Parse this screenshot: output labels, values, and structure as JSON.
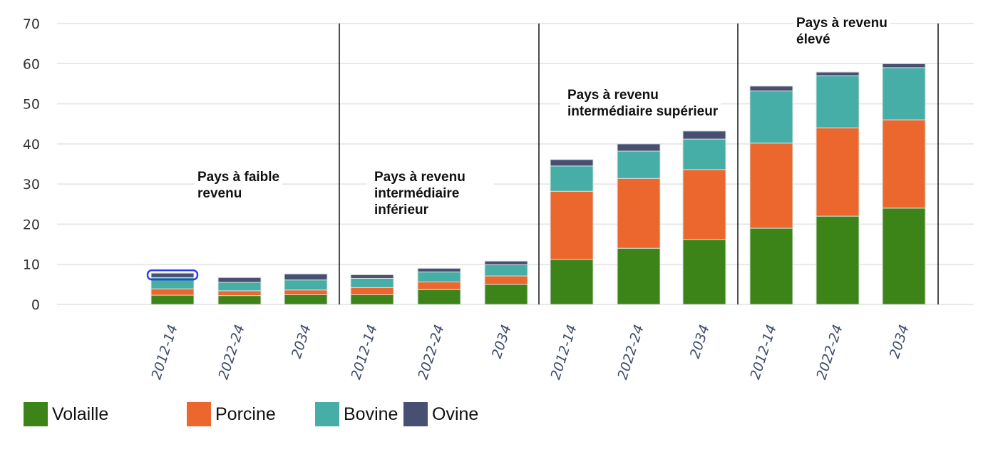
{
  "chart_data": {
    "type": "bar",
    "stacked": true,
    "ylim": [
      0,
      70
    ],
    "yticks": [
      0,
      10,
      20,
      30,
      40,
      50,
      60,
      70
    ],
    "grid": true,
    "legend_position": "bottom-left",
    "groups": [
      {
        "label": "Pays à faible revenu",
        "lines": [
          "Pays à faible",
          "revenu"
        ]
      },
      {
        "label": "Pays à revenu intermédiaire inférieur",
        "lines": [
          "Pays à revenu",
          "intermédiaire",
          "inférieur"
        ]
      },
      {
        "label": "Pays à revenu intermédiaire supérieur",
        "lines": [
          "Pays à revenu",
          "intermédiaire supérieur"
        ]
      },
      {
        "label": "Pays à revenu élevé",
        "lines": [
          "Pays à revenu",
          "élevé"
        ]
      }
    ],
    "categories": [
      "2012-14",
      "2022-24",
      "2034",
      "2012-14",
      "2022-24",
      "2034",
      "2012-14",
      "2022-24",
      "2034",
      "2012-14",
      "2022-24",
      "2034"
    ],
    "series": [
      {
        "name": "Volaille",
        "color": "#3d8418",
        "values": [
          2.3,
          2.2,
          2.4,
          2.4,
          3.7,
          5.0,
          11.2,
          14.0,
          16.2,
          19.0,
          22.0,
          24.0
        ]
      },
      {
        "name": "Porcine",
        "color": "#ec672e",
        "values": [
          1.6,
          1.2,
          1.2,
          1.8,
          1.9,
          2.1,
          17.0,
          17.4,
          17.4,
          21.2,
          22.0,
          22.0
        ]
      },
      {
        "name": "Bovine",
        "color": "#46aea6",
        "values": [
          2.8,
          2.1,
          2.5,
          2.3,
          2.5,
          2.8,
          6.3,
          6.8,
          7.6,
          13.0,
          13.0,
          13.0
        ]
      },
      {
        "name": "Ovine",
        "color": "#474f72",
        "values": [
          1.1,
          1.2,
          1.5,
          0.9,
          0.9,
          0.9,
          1.6,
          1.8,
          2.0,
          1.2,
          0.9,
          1.0
        ]
      }
    ],
    "selected_bar_index": 0,
    "selection_color": "#2a3cf0"
  }
}
